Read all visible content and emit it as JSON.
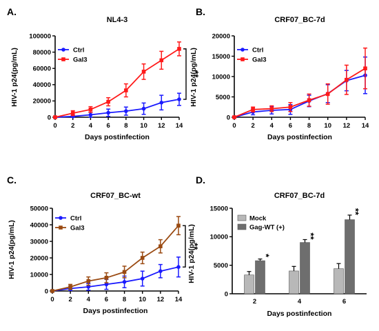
{
  "chart_data": [
    {
      "panel": "A.",
      "type": "line",
      "title": "NL4-3",
      "xlabel": "Days postinfection",
      "ylabel": "HIV-1 p24(pg/mL)",
      "x": [
        0,
        2,
        4,
        6,
        8,
        10,
        12,
        14
      ],
      "xticks": [
        "0",
        "2",
        "4",
        "6",
        "8",
        "10",
        "12",
        "14"
      ],
      "xlim": [
        0,
        14
      ],
      "ylim": [
        0,
        100000
      ],
      "yticks": [
        "0",
        "20000",
        "40000",
        "60000",
        "80000",
        "100000"
      ],
      "legend_position": "top-left",
      "significance": "**",
      "series": [
        {
          "name": "Ctrl",
          "color": "#1a1aff",
          "marker": "circle",
          "values": [
            0,
            1000,
            3000,
            5500,
            7500,
            10500,
            18000,
            22000
          ],
          "errors": [
            300,
            1500,
            3000,
            4500,
            5000,
            7000,
            9000,
            7500
          ]
        },
        {
          "name": "Gal3",
          "color": "#ff1a1a",
          "marker": "square",
          "values": [
            0,
            5000,
            9500,
            19000,
            33000,
            56000,
            70000,
            84000
          ],
          "errors": [
            300,
            3000,
            3500,
            5000,
            8000,
            9500,
            11000,
            8500
          ]
        }
      ]
    },
    {
      "panel": "B.",
      "type": "line",
      "title": "CRF07_BC-7d",
      "xlabel": "Days postinfection",
      "ylabel": "HIV-1 p24(pg/mL)",
      "x": [
        0,
        2,
        4,
        6,
        8,
        10,
        12,
        14
      ],
      "xticks": [
        "0",
        "2",
        "4",
        "6",
        "8",
        "10",
        "12",
        "14"
      ],
      "xlim": [
        0,
        14
      ],
      "ylim": [
        0,
        20000
      ],
      "yticks": [
        "0",
        "5000",
        "10000",
        "15000",
        "20000"
      ],
      "legend_position": "top-left",
      "series": [
        {
          "name": "Ctrl",
          "color": "#1a1aff",
          "marker": "circle",
          "values": [
            0,
            1300,
            1700,
            1900,
            4000,
            5800,
            9000,
            10300
          ],
          "errors": [
            200,
            700,
            900,
            1200,
            1400,
            2200,
            2500,
            4500
          ]
        },
        {
          "name": "Gal3",
          "color": "#ff1a1a",
          "marker": "square",
          "values": [
            0,
            1900,
            2100,
            2500,
            4200,
            5700,
            9200,
            12000
          ],
          "errors": [
            200,
            600,
            700,
            1100,
            1500,
            2500,
            3600,
            5000
          ]
        }
      ]
    },
    {
      "panel": "C.",
      "type": "line",
      "title": "CRF07_BC-wt",
      "xlabel": "Days postinfection",
      "ylabel": "HIV-1 p24(pg/mL)",
      "x": [
        0,
        2,
        4,
        6,
        8,
        10,
        12,
        14
      ],
      "xticks": [
        "0",
        "2",
        "4",
        "6",
        "8",
        "10",
        "12",
        "14"
      ],
      "xlim": [
        0,
        14
      ],
      "ylim": [
        0,
        50000
      ],
      "yticks": [
        "0",
        "10000",
        "20000",
        "30000",
        "40000",
        "50000"
      ],
      "legend_position": "top-left",
      "significance": "**",
      "series": [
        {
          "name": "Ctrl",
          "color": "#1a1aff",
          "marker": "circle",
          "values": [
            0,
            1500,
            2500,
            4000,
            5500,
            7500,
            12000,
            14500
          ],
          "errors": [
            300,
            1200,
            2000,
            3000,
            3500,
            4500,
            4000,
            6000
          ]
        },
        {
          "name": "Gal3",
          "color": "#9a4a12",
          "marker": "square",
          "values": [
            0,
            2500,
            6000,
            8000,
            11500,
            20000,
            27000,
            39500
          ],
          "errors": [
            300,
            1500,
            2500,
            3000,
            3500,
            3500,
            4000,
            5500
          ]
        }
      ]
    },
    {
      "panel": "D.",
      "type": "bar",
      "title": "CRF07_BC-7d",
      "xlabel": "Days postinfection",
      "ylabel": "HIV-1 p24(pg/mL)",
      "categories": [
        "2",
        "4",
        "6"
      ],
      "ylim": [
        0,
        15000
      ],
      "yticks": [
        "0",
        "5000",
        "10000",
        "15000"
      ],
      "legend_position": "top-left",
      "series": [
        {
          "name": "Mock",
          "color": "#b8b8b8",
          "values": [
            3300,
            4000,
            4400
          ],
          "errors": [
            600,
            800,
            900
          ]
        },
        {
          "name": "Gag-WT (+)",
          "color": "#6e6e6e",
          "values": [
            5800,
            9000,
            13000
          ],
          "errors": [
            300,
            500,
            800
          ]
        }
      ],
      "significance": [
        "*",
        "**",
        "**"
      ]
    }
  ]
}
